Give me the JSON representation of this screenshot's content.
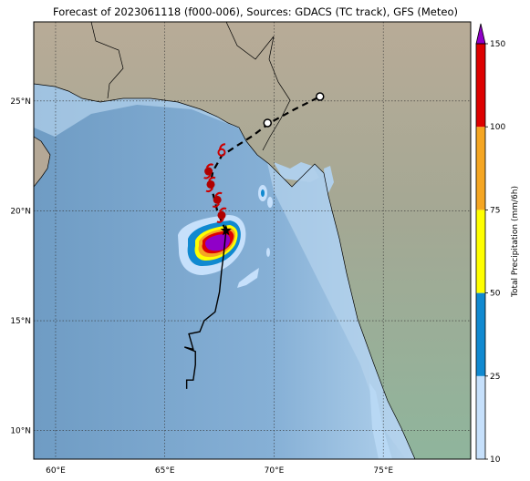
{
  "title": "Forecast of 2023061118 (f000-006), Sources: GDACS (TC track), GFS (Meteo)",
  "map": {
    "lon_range": [
      59,
      79
    ],
    "lat_range": [
      8.7,
      28.6
    ],
    "lon_ticks": [
      {
        "value": 60,
        "label": "60°E"
      },
      {
        "value": 65,
        "label": "65°E"
      },
      {
        "value": 70,
        "label": "70°E"
      },
      {
        "value": 75,
        "label": "75°E"
      }
    ],
    "lat_ticks": [
      {
        "value": 10,
        "label": "10°N"
      },
      {
        "value": 15,
        "label": "15°N"
      },
      {
        "value": 20,
        "label": "20°N"
      },
      {
        "value": 25,
        "label": "25°N"
      }
    ],
    "colors": {
      "ocean_deep": "#7fa8cc",
      "ocean_shallow": "#c3dbee",
      "land_low": "#8fb39a",
      "land_high": "#b9ab98",
      "track_past": "#000000",
      "track_forecast": "#000000",
      "tc_marker": "#cc0000"
    },
    "past_track": [
      [
        66.0,
        11.9
      ],
      [
        66.0,
        12.3
      ],
      [
        66.3,
        12.3
      ],
      [
        66.4,
        13.0
      ],
      [
        66.4,
        13.6
      ],
      [
        65.9,
        13.8
      ],
      [
        66.3,
        13.7
      ],
      [
        66.1,
        14.4
      ],
      [
        66.6,
        14.5
      ],
      [
        66.8,
        15.0
      ],
      [
        67.3,
        15.4
      ],
      [
        67.5,
        16.3
      ],
      [
        67.6,
        17.3
      ],
      [
        67.7,
        18.1
      ],
      [
        67.8,
        19.1
      ]
    ],
    "forecast_track": [
      [
        67.8,
        19.1
      ],
      [
        67.6,
        19.5
      ],
      [
        67.4,
        20.0
      ],
      [
        67.2,
        20.8
      ],
      [
        67.1,
        21.3
      ],
      [
        67.2,
        21.8
      ],
      [
        67.6,
        22.5
      ],
      [
        68.2,
        22.9
      ],
      [
        69.0,
        23.4
      ],
      [
        69.8,
        24.0
      ],
      [
        70.9,
        24.6
      ],
      [
        72.1,
        25.2
      ]
    ],
    "tc_positions": [
      {
        "lon": 67.8,
        "lat": 19.1,
        "kind": "current"
      },
      {
        "lon": 67.6,
        "lat": 19.8,
        "kind": "hurricane"
      },
      {
        "lon": 67.4,
        "lat": 20.5,
        "kind": "hurricane"
      },
      {
        "lon": 67.1,
        "lat": 21.2,
        "kind": "hurricane"
      },
      {
        "lon": 67.0,
        "lat": 21.8,
        "kind": "hurricane"
      },
      {
        "lon": 67.6,
        "lat": 22.7,
        "kind": "storm"
      },
      {
        "lon": 69.7,
        "lat": 24.0,
        "kind": "remnant"
      },
      {
        "lon": 72.1,
        "lat": 25.2,
        "kind": "remnant"
      }
    ]
  },
  "colorbar": {
    "label": "Total Precipitation (mm/6h)",
    "bins": [
      {
        "from": 10,
        "to": 25,
        "color": "#c6e0fb"
      },
      {
        "from": 25,
        "to": 50,
        "color": "#1089d0"
      },
      {
        "from": 50,
        "to": 75,
        "color": "#ffff00"
      },
      {
        "from": 75,
        "to": 100,
        "color": "#f5a623"
      },
      {
        "from": 100,
        "to": 150,
        "color": "#dd0000"
      }
    ],
    "extend_color": "#9000c8",
    "tick_labels": [
      "10",
      "25",
      "50",
      "75",
      "100",
      "150"
    ]
  }
}
